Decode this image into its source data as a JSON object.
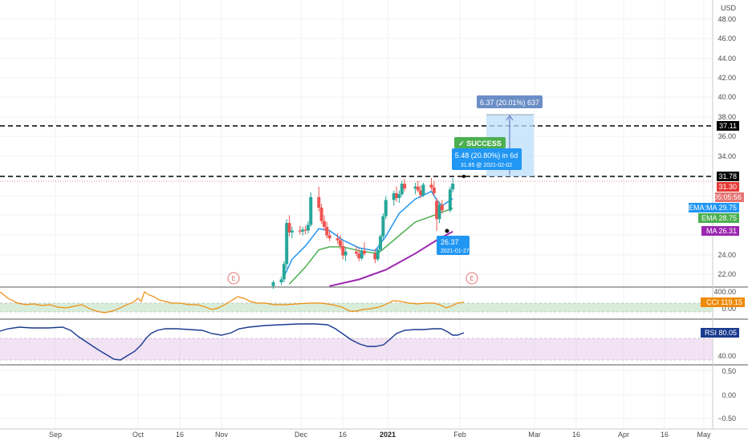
{
  "currency_label": "USD",
  "colors": {
    "up": "#26a69a",
    "down": "#ef5350",
    "ema_ma": "#2196f3",
    "ema": "#4caf50",
    "ma": "#9c27b0",
    "cci": "#ef8b0c",
    "rsi": "#1a3a8f",
    "level": "#000000",
    "last_price": "#e53935",
    "target_box": "#bbdefb",
    "success": "#4caf50"
  },
  "price_axis": {
    "ticks": [
      "48.00",
      "46.00",
      "44.00",
      "42.00",
      "40.00",
      "38.00",
      "36.00",
      "34.00",
      "24.00",
      "22.00"
    ],
    "min": 20.5,
    "max": 50.5
  },
  "cci_axis": {
    "ticks": [
      "400.00",
      "0.00"
    ]
  },
  "rsi_axis": {
    "ticks": [
      "40.00"
    ]
  },
  "bottom_axis": {
    "ticks": [
      "0.50",
      "0.00",
      "−0.50"
    ]
  },
  "x_axis": {
    "labels": [
      {
        "text": "Sep",
        "bold": false
      },
      {
        "text": "Oct",
        "bold": false
      },
      {
        "text": "16",
        "bold": false
      },
      {
        "text": "Nov",
        "bold": false
      },
      {
        "text": "Dec",
        "bold": false
      },
      {
        "text": "16",
        "bold": false
      },
      {
        "text": "2021",
        "bold": true
      },
      {
        "text": "Feb",
        "bold": false
      },
      {
        "text": "Mar",
        "bold": false
      },
      {
        "text": "16",
        "bold": false
      },
      {
        "text": "Apr",
        "bold": false
      },
      {
        "text": "16",
        "bold": false
      },
      {
        "text": "May",
        "bold": false
      }
    ]
  },
  "levels": {
    "upper": {
      "value": 37.11,
      "label": "37.11"
    },
    "lower": {
      "value": 31.78,
      "label": "31.78"
    }
  },
  "price_badges": {
    "last": {
      "label": "31.30"
    },
    "countdown": {
      "label": "05:05:56"
    },
    "ema_ma": {
      "label": "EMA:MA",
      "value": "29.75"
    },
    "ema": {
      "label": "EMA",
      "value": "28.75"
    },
    "ma": {
      "label": "MA",
      "value": "26.31"
    }
  },
  "indicators": {
    "cci": {
      "label": "CCI",
      "value": "119.15"
    },
    "rsi": {
      "label": "RSI",
      "value": "80.05"
    }
  },
  "annotations": {
    "target": "6.37 (20.01%) 637",
    "success": "✓ SUCCESS",
    "gain": "5.48 (20.80%) in 6d",
    "entry": "31.85 @ 2021-02-02",
    "low_price": "26.37",
    "low_date": "2021-01-27",
    "earnings": "E"
  },
  "chart_data": {
    "type": "candlestick",
    "title": "",
    "xlabel": "",
    "ylabel": "USD",
    "ylim": [
      20.5,
      50.5
    ],
    "x_range": [
      "2020-08-17",
      "2021-05-10"
    ],
    "candles": [
      {
        "date": "2020-11-27",
        "o": 20.6,
        "h": 21.2,
        "l": 20.3,
        "c": 21.0
      },
      {
        "date": "2020-11-30",
        "o": 21.0,
        "h": 21.6,
        "l": 20.7,
        "c": 21.3
      },
      {
        "date": "2020-12-01",
        "o": 21.3,
        "h": 23.2,
        "l": 21.0,
        "c": 22.9
      },
      {
        "date": "2020-12-02",
        "o": 22.9,
        "h": 27.6,
        "l": 22.4,
        "c": 27.2
      },
      {
        "date": "2020-12-03",
        "o": 27.2,
        "h": 28.0,
        "l": 25.8,
        "c": 26.2
      },
      {
        "date": "2020-12-04",
        "o": 26.2,
        "h": 26.8,
        "l": 25.6,
        "c": 26.4
      },
      {
        "date": "2020-12-07",
        "o": 26.4,
        "h": 26.9,
        "l": 26.0,
        "c": 26.3
      },
      {
        "date": "2020-12-08",
        "o": 26.3,
        "h": 26.8,
        "l": 25.9,
        "c": 26.5
      },
      {
        "date": "2020-12-09",
        "o": 26.5,
        "h": 26.9,
        "l": 26.0,
        "c": 26.4
      },
      {
        "date": "2020-12-10",
        "o": 26.4,
        "h": 27.4,
        "l": 26.1,
        "c": 27.0
      },
      {
        "date": "2020-12-11",
        "o": 27.0,
        "h": 30.4,
        "l": 26.8,
        "c": 29.9
      },
      {
        "date": "2020-12-14",
        "o": 29.9,
        "h": 31.0,
        "l": 28.4,
        "c": 28.8
      },
      {
        "date": "2020-12-15",
        "o": 28.8,
        "h": 29.2,
        "l": 27.1,
        "c": 27.4
      },
      {
        "date": "2020-12-16",
        "o": 27.4,
        "h": 28.0,
        "l": 26.4,
        "c": 26.8
      },
      {
        "date": "2020-12-17",
        "o": 26.8,
        "h": 27.3,
        "l": 25.6,
        "c": 25.9
      },
      {
        "date": "2020-12-18",
        "o": 25.9,
        "h": 26.4,
        "l": 25.3,
        "c": 25.6
      },
      {
        "date": "2020-12-21",
        "o": 25.6,
        "h": 26.1,
        "l": 25.0,
        "c": 25.4
      },
      {
        "date": "2020-12-22",
        "o": 25.4,
        "h": 25.9,
        "l": 24.4,
        "c": 24.8
      },
      {
        "date": "2020-12-23",
        "o": 24.8,
        "h": 25.3,
        "l": 23.4,
        "c": 23.8
      },
      {
        "date": "2020-12-24",
        "o": 23.8,
        "h": 24.6,
        "l": 23.2,
        "c": 24.2
      },
      {
        "date": "2020-12-28",
        "o": 24.2,
        "h": 24.8,
        "l": 23.7,
        "c": 24.0
      },
      {
        "date": "2020-12-29",
        "o": 24.0,
        "h": 24.5,
        "l": 23.2,
        "c": 23.5
      },
      {
        "date": "2020-12-30",
        "o": 23.5,
        "h": 24.6,
        "l": 23.3,
        "c": 24.3
      },
      {
        "date": "2020-12-31",
        "o": 24.3,
        "h": 25.2,
        "l": 23.8,
        "c": 24.0
      },
      {
        "date": "2021-01-04",
        "o": 24.0,
        "h": 24.5,
        "l": 23.0,
        "c": 23.4
      },
      {
        "date": "2021-01-05",
        "o": 23.4,
        "h": 24.6,
        "l": 23.2,
        "c": 24.4
      },
      {
        "date": "2021-01-06",
        "o": 24.4,
        "h": 26.0,
        "l": 24.2,
        "c": 25.8
      },
      {
        "date": "2021-01-07",
        "o": 25.8,
        "h": 28.2,
        "l": 25.5,
        "c": 27.9
      },
      {
        "date": "2021-01-08",
        "o": 27.9,
        "h": 30.0,
        "l": 27.6,
        "c": 29.6
      },
      {
        "date": "2021-01-11",
        "o": 29.6,
        "h": 30.6,
        "l": 29.0,
        "c": 30.3
      },
      {
        "date": "2021-01-12",
        "o": 30.3,
        "h": 31.0,
        "l": 29.4,
        "c": 29.8
      },
      {
        "date": "2021-01-13",
        "o": 29.8,
        "h": 30.6,
        "l": 29.3,
        "c": 30.2
      },
      {
        "date": "2021-01-14",
        "o": 30.2,
        "h": 31.6,
        "l": 30.0,
        "c": 31.3
      },
      {
        "date": "2021-01-15",
        "o": 31.3,
        "h": 31.8,
        "l": 30.5,
        "c": 30.8
      },
      {
        "date": "2021-01-19",
        "o": 30.8,
        "h": 31.4,
        "l": 30.2,
        "c": 31.0
      },
      {
        "date": "2021-01-20",
        "o": 31.0,
        "h": 31.6,
        "l": 30.4,
        "c": 30.6
      },
      {
        "date": "2021-01-21",
        "o": 30.6,
        "h": 31.1,
        "l": 29.8,
        "c": 30.1
      },
      {
        "date": "2021-01-22",
        "o": 30.1,
        "h": 31.4,
        "l": 29.9,
        "c": 31.2
      },
      {
        "date": "2021-01-25",
        "o": 31.2,
        "h": 31.9,
        "l": 30.6,
        "c": 30.9
      },
      {
        "date": "2021-01-26",
        "o": 30.9,
        "h": 31.6,
        "l": 30.0,
        "c": 30.3
      },
      {
        "date": "2021-01-27",
        "o": 29.5,
        "h": 29.8,
        "l": 26.37,
        "c": 27.6
      },
      {
        "date": "2021-01-28",
        "o": 27.6,
        "h": 29.4,
        "l": 27.2,
        "c": 29.1
      },
      {
        "date": "2021-01-29",
        "o": 29.1,
        "h": 29.6,
        "l": 28.2,
        "c": 28.5
      },
      {
        "date": "2021-02-01",
        "o": 28.5,
        "h": 31.0,
        "l": 28.3,
        "c": 30.7
      },
      {
        "date": "2021-02-02",
        "o": 30.7,
        "h": 31.9,
        "l": 30.4,
        "c": 31.3
      }
    ],
    "series": [
      {
        "name": "EMA:MA",
        "points": [
          [
            "2020-12-01",
            21.6
          ],
          [
            "2020-12-04",
            23.4
          ],
          [
            "2020-12-09",
            24.8
          ],
          [
            "2020-12-14",
            26.6
          ],
          [
            "2020-12-18",
            26.4
          ],
          [
            "2020-12-23",
            25.4
          ],
          [
            "2020-12-29",
            24.6
          ],
          [
            "2021-01-04",
            24.3
          ],
          [
            "2021-01-08",
            25.8
          ],
          [
            "2021-01-13",
            28.2
          ],
          [
            "2021-01-19",
            29.7
          ],
          [
            "2021-01-25",
            30.5
          ],
          [
            "2021-01-27",
            29.6
          ],
          [
            "2021-01-29",
            29.0
          ],
          [
            "2021-02-02",
            29.75
          ]
        ]
      },
      {
        "name": "EMA",
        "points": [
          [
            "2020-12-03",
            20.8
          ],
          [
            "2020-12-09",
            22.6
          ],
          [
            "2020-12-14",
            24.4
          ],
          [
            "2020-12-18",
            24.7
          ],
          [
            "2020-12-23",
            24.7
          ],
          [
            "2020-12-29",
            24.3
          ],
          [
            "2021-01-05",
            24.0
          ],
          [
            "2021-01-11",
            25.4
          ],
          [
            "2021-01-19",
            27.3
          ],
          [
            "2021-01-27",
            28.1
          ],
          [
            "2021-02-02",
            28.75
          ]
        ]
      },
      {
        "name": "MA",
        "points": [
          [
            "2020-12-18",
            20.6
          ],
          [
            "2020-12-29",
            21.3
          ],
          [
            "2021-01-08",
            22.3
          ],
          [
            "2021-01-19",
            24.0
          ],
          [
            "2021-01-27",
            25.4
          ],
          [
            "2021-02-02",
            26.31
          ]
        ]
      }
    ]
  }
}
